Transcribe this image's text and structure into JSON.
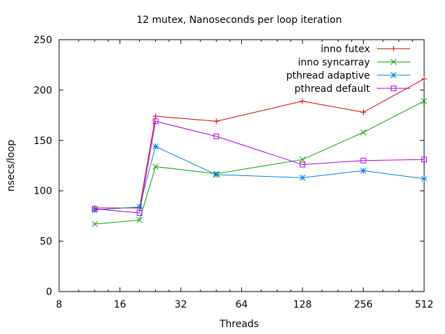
{
  "chart_data": {
    "type": "line",
    "title": "12 mutex, Nanoseconds per loop iteration",
    "xlabel": "Threads",
    "ylabel": "nsecs/loop",
    "x_scale": "log2",
    "xlim": [
      8,
      512
    ],
    "ylim": [
      0,
      250
    ],
    "x_ticks": [
      8,
      16,
      32,
      64,
      128,
      256,
      512
    ],
    "y_ticks": [
      0,
      50,
      100,
      150,
      200,
      250
    ],
    "grid": false,
    "legend_position": "top-right",
    "x": [
      12,
      20,
      24,
      48,
      128,
      256,
      512
    ],
    "series": [
      {
        "name": "inno futex",
        "color": "#cc0000",
        "marker": "plus",
        "values": [
          83,
          83,
          174,
          169,
          189,
          178,
          211
        ]
      },
      {
        "name": "inno syncarray",
        "color": "#00a000",
        "marker": "cross",
        "values": [
          67,
          71,
          124,
          117,
          131,
          158,
          189
        ]
      },
      {
        "name": "pthread adaptive",
        "color": "#0080dd",
        "marker": "star",
        "values": [
          81,
          84,
          144,
          116,
          113,
          120,
          112
        ]
      },
      {
        "name": "pthread default",
        "color": "#b000dd",
        "marker": "square",
        "values": [
          82,
          78,
          169,
          154,
          126,
          130,
          131
        ]
      }
    ]
  }
}
